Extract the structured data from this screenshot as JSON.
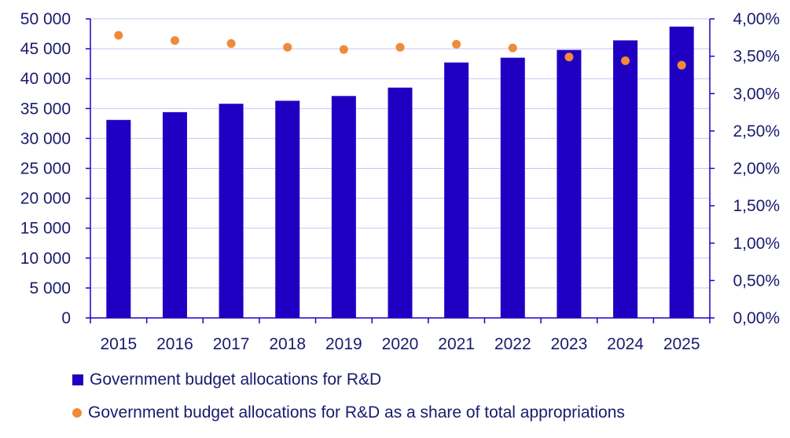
{
  "colors": {
    "bar": "#1f00c2",
    "dot": "#f08a3a",
    "text": "#1a1a6e",
    "grid": "#1f00c2"
  },
  "chart_data": {
    "type": "bar",
    "categories": [
      "2015",
      "2016",
      "2017",
      "2018",
      "2019",
      "2020",
      "2021",
      "2022",
      "2023",
      "2024",
      "2025"
    ],
    "series": [
      {
        "name": "Government budget allocations for R&D",
        "type": "bar",
        "axis": "left",
        "values": [
          33100,
          34400,
          35800,
          36300,
          37100,
          38500,
          42700,
          43500,
          44800,
          46400,
          48700
        ]
      },
      {
        "name": "Government budget allocations for R&D as a share of total appropriations",
        "type": "scatter",
        "axis": "right",
        "values": [
          3.78,
          3.71,
          3.67,
          3.62,
          3.59,
          3.62,
          3.66,
          3.61,
          3.49,
          3.44,
          3.38
        ]
      }
    ],
    "y_left": {
      "ylim": [
        0,
        50000
      ],
      "ticks": [
        "0",
        "5 000",
        "10 000",
        "15 000",
        "20 000",
        "25 000",
        "30 000",
        "35 000",
        "40 000",
        "45 000",
        "50 000"
      ]
    },
    "y_right": {
      "ylim": [
        0,
        4
      ],
      "ticks": [
        "0,00%",
        "0,50%",
        "1,00%",
        "1,50%",
        "2,00%",
        "2,50%",
        "3,00%",
        "3,50%",
        "4,00%"
      ]
    },
    "grid": true,
    "legend_position": "bottom-left"
  },
  "legend": {
    "bar_label": "Government budget allocations for R&D",
    "dot_label": "Government budget allocations for R&D as a share of total appropriations"
  }
}
